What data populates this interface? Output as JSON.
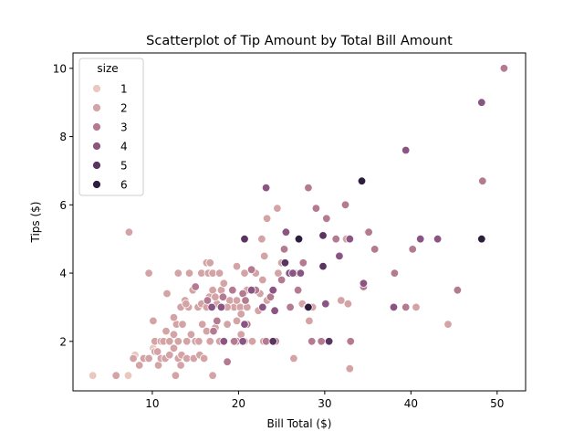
{
  "chart_data": {
    "type": "scatter",
    "title": "Scatterplot of Tip Amount by Total Bill Amount",
    "xlabel": "Bill Total ($)",
    "ylabel": "Tips ($)",
    "xlim": [
      0.8,
      53.3
    ],
    "ylim": [
      0.55,
      10.45
    ],
    "xticks": [
      10,
      20,
      30,
      40,
      50
    ],
    "yticks": [
      2,
      4,
      6,
      8,
      10
    ],
    "grid": false,
    "legend": {
      "title": "size",
      "placement": "top-left",
      "entries": [
        {
          "label": "1",
          "size": 1,
          "color": "#e9c8c0"
        },
        {
          "label": "2",
          "size": 2,
          "color": "#d4a3a6"
        },
        {
          "label": "3",
          "size": 3,
          "color": "#b37a91"
        },
        {
          "label": "4",
          "size": 4,
          "color": "#8a5583"
        },
        {
          "label": "5",
          "size": 5,
          "color": "#5a355f"
        },
        {
          "label": "6",
          "size": 6,
          "color": "#2d1e3e"
        }
      ]
    },
    "points": [
      [
        3.1,
        1.0,
        1
      ],
      [
        7.2,
        1.0,
        1
      ],
      [
        8.0,
        1.6,
        1
      ],
      [
        10.1,
        1.8,
        1
      ],
      [
        5.8,
        1.0,
        2
      ],
      [
        7.8,
        1.5,
        2
      ],
      [
        8.5,
        1.3,
        2
      ],
      [
        9.0,
        1.5,
        2
      ],
      [
        9.6,
        1.5,
        2
      ],
      [
        10.3,
        1.7,
        2
      ],
      [
        10.7,
        1.3,
        2
      ],
      [
        11.0,
        1.5,
        2
      ],
      [
        11.5,
        1.5,
        2
      ],
      [
        12.0,
        1.6,
        2
      ],
      [
        12.5,
        1.8,
        2
      ],
      [
        13.0,
        1.5,
        2
      ],
      [
        13.4,
        1.6,
        2
      ],
      [
        14.0,
        1.5,
        2
      ],
      [
        14.8,
        1.5,
        2
      ],
      [
        15.5,
        1.6,
        2
      ],
      [
        16.0,
        1.5,
        2
      ],
      [
        17.0,
        1.0,
        2
      ],
      [
        12.7,
        1.0,
        2
      ],
      [
        13.3,
        1.3,
        2
      ],
      [
        18.7,
        1.4,
        2
      ],
      [
        26.4,
        1.5,
        2
      ],
      [
        29.7,
        2.0,
        2
      ],
      [
        32.9,
        1.2,
        2
      ],
      [
        7.3,
        5.2,
        2
      ],
      [
        9.6,
        4.0,
        2
      ],
      [
        10.3,
        2.0,
        2
      ],
      [
        10.6,
        1.7,
        2
      ],
      [
        11.0,
        2.0,
        2
      ],
      [
        11.3,
        2.0,
        2
      ],
      [
        11.6,
        2.3,
        2
      ],
      [
        12.0,
        2.0,
        2
      ],
      [
        12.5,
        2.2,
        2
      ],
      [
        12.8,
        2.5,
        2
      ],
      [
        13.0,
        2.0,
        2
      ],
      [
        13.5,
        2.5,
        2
      ],
      [
        14.0,
        2.0,
        2
      ],
      [
        14.5,
        2.2,
        2
      ],
      [
        15.0,
        2.0,
        2
      ],
      [
        15.4,
        2.0,
        2
      ],
      [
        15.8,
        2.5,
        2
      ],
      [
        16.3,
        2.3,
        2
      ],
      [
        16.7,
        2.0,
        2
      ],
      [
        17.3,
        2.4,
        2
      ],
      [
        17.8,
        2.0,
        2
      ],
      [
        18.3,
        2.0,
        2
      ],
      [
        18.7,
        2.5,
        2
      ],
      [
        19.4,
        2.0,
        2
      ],
      [
        19.8,
        2.6,
        2
      ],
      [
        20.3,
        2.2,
        2
      ],
      [
        20.7,
        2.0,
        2
      ],
      [
        21.0,
        2.5,
        2
      ],
      [
        21.6,
        2.0,
        2
      ],
      [
        22.3,
        2.9,
        2
      ],
      [
        22.9,
        2.0,
        2
      ],
      [
        10.1,
        2.6,
        2
      ],
      [
        11.7,
        3.4,
        2
      ],
      [
        12.5,
        2.7,
        2
      ],
      [
        13.3,
        3.0,
        2
      ],
      [
        13.8,
        3.2,
        2
      ],
      [
        14.2,
        3.0,
        2
      ],
      [
        14.7,
        3.5,
        2
      ],
      [
        15.3,
        3.0,
        2
      ],
      [
        15.7,
        3.1,
        2
      ],
      [
        16.3,
        3.0,
        2
      ],
      [
        16.6,
        3.3,
        2
      ],
      [
        17.0,
        3.5,
        2
      ],
      [
        17.5,
        3.1,
        2
      ],
      [
        18.0,
        3.5,
        2
      ],
      [
        18.5,
        3.0,
        2
      ],
      [
        19.0,
        3.2,
        2
      ],
      [
        19.5,
        3.0,
        2
      ],
      [
        19.8,
        3.2,
        2
      ],
      [
        20.2,
        3.0,
        2
      ],
      [
        20.6,
        3.4,
        2
      ],
      [
        21.0,
        3.0,
        2
      ],
      [
        21.6,
        3.5,
        2
      ],
      [
        22.5,
        3.4,
        2
      ],
      [
        23.3,
        3.2,
        2
      ],
      [
        24.0,
        3.5,
        2
      ],
      [
        14.3,
        4.0,
        2
      ],
      [
        15.7,
        4.0,
        2
      ],
      [
        16.5,
        4.0,
        2
      ],
      [
        17.0,
        4.0,
        2
      ],
      [
        17.8,
        4.0,
        2
      ],
      [
        18.3,
        3.7,
        2
      ],
      [
        19.8,
        4.2,
        2
      ],
      [
        20.7,
        4.0,
        2
      ],
      [
        21.0,
        3.5,
        2
      ],
      [
        22.0,
        4.0,
        2
      ],
      [
        23.0,
        4.5,
        2
      ],
      [
        24.6,
        4.0,
        2
      ],
      [
        22.7,
        5.0,
        2
      ],
      [
        23.3,
        5.6,
        2
      ],
      [
        24.5,
        5.9,
        2
      ],
      [
        16.3,
        4.3,
        2
      ],
      [
        13.0,
        4.0,
        2
      ],
      [
        17.3,
        3.3,
        2
      ],
      [
        18.7,
        3.0,
        2
      ],
      [
        20.3,
        2.8,
        2
      ],
      [
        25.0,
        4.3,
        2
      ],
      [
        26.6,
        4.0,
        2
      ],
      [
        27.4,
        3.1,
        2
      ],
      [
        28.2,
        2.6,
        2
      ],
      [
        28.6,
        3.0,
        2
      ],
      [
        30.5,
        2.0,
        2
      ],
      [
        31.9,
        3.2,
        2
      ],
      [
        32.7,
        3.1,
        2
      ],
      [
        32.5,
        5.0,
        2
      ],
      [
        35.0,
        5.2,
        2
      ],
      [
        40.6,
        3.0,
        2
      ],
      [
        44.3,
        2.5,
        2
      ],
      [
        16.7,
        4.3,
        2
      ],
      [
        20.7,
        5.0,
        2
      ],
      [
        22.8,
        3.8,
        2
      ],
      [
        13.9,
        3.1,
        2
      ],
      [
        15.0,
        3.6,
        3
      ],
      [
        16.4,
        3.2,
        3
      ],
      [
        17.5,
        2.6,
        3
      ],
      [
        18.2,
        3.3,
        3
      ],
      [
        18.7,
        1.4,
        3
      ],
      [
        19.3,
        3.5,
        3
      ],
      [
        19.8,
        2.0,
        3
      ],
      [
        20.5,
        3.4,
        3
      ],
      [
        20.8,
        3.2,
        3
      ],
      [
        21.0,
        2.5,
        3
      ],
      [
        22.0,
        3.5,
        3
      ],
      [
        23.2,
        2.0,
        3
      ],
      [
        23.7,
        3.3,
        3
      ],
      [
        24.1,
        3.5,
        3
      ],
      [
        25.0,
        3.8,
        3
      ],
      [
        26.0,
        3.0,
        3
      ],
      [
        26.9,
        3.5,
        3
      ],
      [
        27.5,
        4.3,
        3
      ],
      [
        28.1,
        6.5,
        3
      ],
      [
        28.5,
        2.0,
        3
      ],
      [
        29.0,
        5.9,
        3
      ],
      [
        30.2,
        5.6,
        3
      ],
      [
        31.3,
        5.0,
        3
      ],
      [
        32.4,
        6.0,
        3
      ],
      [
        33.0,
        2.0,
        3
      ],
      [
        34.5,
        3.6,
        3
      ],
      [
        35.1,
        5.2,
        3
      ],
      [
        35.8,
        4.7,
        3
      ],
      [
        38.1,
        4.0,
        3
      ],
      [
        39.4,
        3.0,
        3
      ],
      [
        40.2,
        4.7,
        3
      ],
      [
        45.4,
        3.5,
        3
      ],
      [
        48.3,
        6.7,
        3
      ],
      [
        50.8,
        10.0,
        3
      ],
      [
        17.1,
        2.3,
        3
      ],
      [
        19.5,
        2.0,
        3
      ],
      [
        21.5,
        4.1,
        3
      ],
      [
        24.3,
        2.0,
        3
      ],
      [
        25.3,
        4.7,
        3
      ],
      [
        29.6,
        2.0,
        3
      ],
      [
        16.9,
        3.0,
        4
      ],
      [
        18.0,
        3.0,
        4
      ],
      [
        20.7,
        2.5,
        4
      ],
      [
        21.5,
        3.5,
        4
      ],
      [
        23.2,
        6.5,
        4
      ],
      [
        24.0,
        3.5,
        4
      ],
      [
        25.5,
        5.2,
        4
      ],
      [
        25.9,
        4.0,
        4
      ],
      [
        26.3,
        4.0,
        4
      ],
      [
        27.2,
        4.0,
        4
      ],
      [
        28.0,
        3.0,
        4
      ],
      [
        29.8,
        5.1,
        4
      ],
      [
        30.1,
        3.1,
        4
      ],
      [
        31.7,
        4.5,
        4
      ],
      [
        32.9,
        5.0,
        4
      ],
      [
        34.5,
        3.7,
        4
      ],
      [
        38.0,
        3.0,
        4
      ],
      [
        39.4,
        7.6,
        4
      ],
      [
        41.1,
        5.0,
        4
      ],
      [
        43.1,
        5.0,
        4
      ],
      [
        48.2,
        9.0,
        4
      ],
      [
        24.2,
        2.9,
        4
      ],
      [
        22.8,
        3.0,
        4
      ],
      [
        20.5,
        2.0,
        4
      ],
      [
        18.3,
        2.0,
        4
      ],
      [
        20.7,
        5.0,
        5
      ],
      [
        24.0,
        2.0,
        5
      ],
      [
        25.4,
        4.3,
        5
      ],
      [
        29.8,
        5.1,
        5
      ],
      [
        30.5,
        2.0,
        5
      ],
      [
        29.8,
        4.2,
        5
      ],
      [
        27.0,
        5.0,
        6
      ],
      [
        28.1,
        3.0,
        6
      ],
      [
        34.3,
        6.7,
        6
      ],
      [
        48.2,
        5.0,
        6
      ]
    ]
  }
}
